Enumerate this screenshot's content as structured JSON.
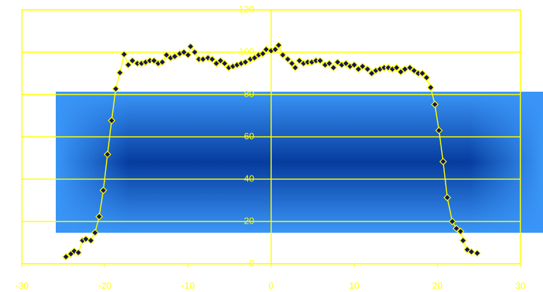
{
  "chart_data": {
    "type": "scatter",
    "x": [
      -24.7,
      -24.1,
      -23.7,
      -23.2,
      -22.7,
      -22.3,
      -21.7,
      -21.2,
      -20.7,
      -20.2,
      -19.7,
      -19.2,
      -18.7,
      -18.2,
      -17.7,
      -17.2,
      -16.7,
      -16.1,
      -15.6,
      -15.1,
      -14.6,
      -14.1,
      -13.6,
      -13.1,
      -12.6,
      -12.1,
      -11.6,
      -11.0,
      -10.5,
      -10.0,
      -9.7,
      -9.2,
      -8.7,
      -8.2,
      -7.6,
      -7.1,
      -6.6,
      -6.1,
      -5.6,
      -5.1,
      -4.6,
      -4.1,
      -3.6,
      -3.1,
      -2.5,
      -2.0,
      -1.5,
      -1.0,
      -0.6,
      0,
      0.5,
      0.9,
      1.4,
      2.0,
      2.5,
      2.9,
      3.4,
      3.9,
      4.4,
      4.9,
      5.4,
      5.9,
      6.5,
      7.0,
      7.5,
      8.0,
      8.5,
      9.0,
      9.5,
      10.0,
      10.5,
      11.0,
      11.6,
      12.1,
      12.6,
      13.1,
      13.6,
      14.1,
      14.6,
      15.1,
      15.6,
      16.1,
      16.7,
      17.2,
      17.7,
      18.2,
      18.7,
      19.2,
      19.7,
      20.2,
      20.7,
      21.2,
      21.8,
      22.3,
      22.8,
      23.1,
      23.6,
      24.1,
      24.8
    ],
    "series": [
      {
        "line_color": "#ffff00",
        "color": "#14145c",
        "values": [
          3.3,
          4.7,
          6,
          5.3,
          11,
          11.7,
          11,
          14.7,
          22.3,
          34.7,
          51.7,
          67.7,
          82.7,
          90.3,
          99,
          94,
          96,
          94.7,
          94.7,
          95.3,
          96,
          96,
          94.7,
          95.3,
          98.7,
          97.3,
          98,
          99.3,
          100,
          98.7,
          102.7,
          100,
          96.7,
          96.7,
          97.3,
          96.7,
          94.7,
          96,
          94.7,
          92.7,
          93.3,
          94,
          94.7,
          95.3,
          96.7,
          97.3,
          98.7,
          99.3,
          101.3,
          100.7,
          101.3,
          103.3,
          98.7,
          96.7,
          94.7,
          92.7,
          96,
          94.7,
          95.3,
          95.3,
          96,
          96,
          94,
          94.7,
          92.7,
          95.3,
          94,
          94.7,
          93.3,
          94,
          92,
          93.3,
          92,
          90,
          91.3,
          92,
          92.7,
          92.7,
          92,
          92.7,
          90.7,
          92,
          92.7,
          91.3,
          90,
          90,
          88,
          83.3,
          75.3,
          63,
          48.3,
          31.3,
          20,
          16.7,
          15.3,
          11,
          6.7,
          5.7,
          5
        ]
      }
    ],
    "xlim": [
      -30,
      30
    ],
    "xticks": [
      -30,
      -20,
      -10,
      0,
      10,
      20,
      30
    ],
    "ylim": [
      0,
      120
    ],
    "yticks": [
      0,
      20,
      40,
      60,
      80,
      100,
      120
    ],
    "grid": true,
    "axis_color": "#ffff00"
  }
}
